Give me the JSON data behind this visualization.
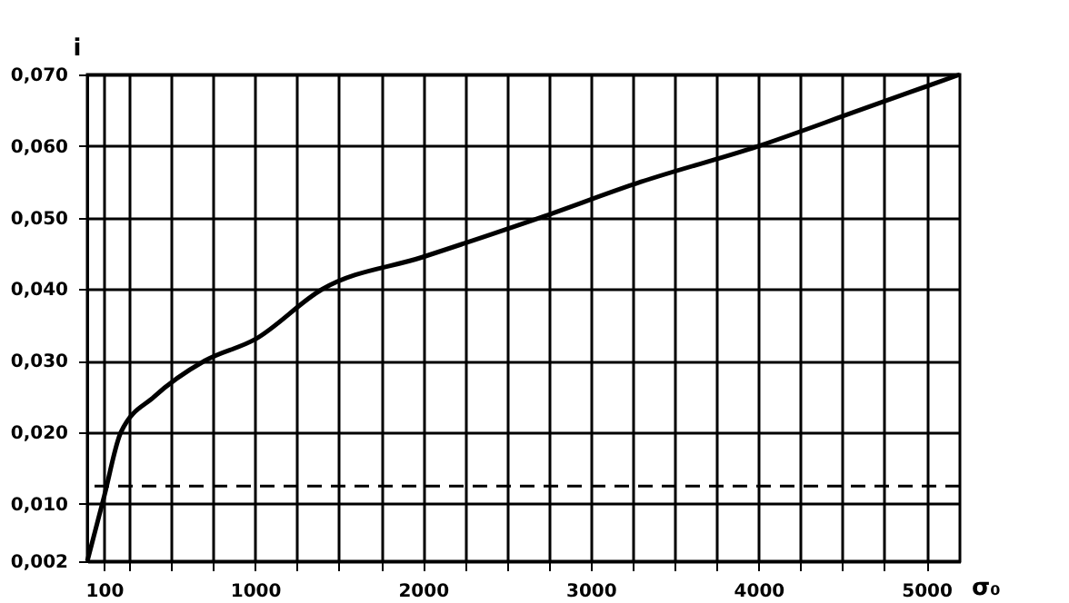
{
  "chart_data": {
    "type": "line",
    "xlabel": "σ₀",
    "ylabel": "i",
    "x": [
      0,
      100,
      200,
      400,
      700,
      1000,
      1400,
      2000,
      2700,
      3300,
      4000,
      4600,
      5200
    ],
    "series": [
      {
        "color": "#000000",
        "values": [
          0.002,
          0.011,
          0.02,
          0.025,
          0.03,
          0.033,
          0.04,
          0.0445,
          0.05,
          0.055,
          0.06,
          0.065,
          0.07
        ]
      }
    ],
    "xlim": [
      0,
      5200
    ],
    "xticks": [
      100,
      {
        "value": 250,
        "label": null
      },
      {
        "value": 500,
        "label": null
      },
      {
        "value": 750,
        "label": null
      },
      1000,
      {
        "value": 1250,
        "label": null
      },
      {
        "value": 1500,
        "label": null
      },
      {
        "value": 1750,
        "label": null
      },
      2000,
      {
        "value": 2250,
        "label": null
      },
      {
        "value": 2500,
        "label": null
      },
      {
        "value": 2750,
        "label": null
      },
      3000,
      {
        "value": 3250,
        "label": null
      },
      {
        "value": 3500,
        "label": null
      },
      {
        "value": 3750,
        "label": null
      },
      4000,
      {
        "value": 4250,
        "label": null
      },
      {
        "value": 4500,
        "label": null
      },
      {
        "value": 4750,
        "label": null
      },
      5000
    ],
    "ylim": [
      0.002,
      0.07
    ],
    "yticks": [
      {
        "value": 0.002,
        "label": "0,002"
      },
      {
        "value": 0.01,
        "label": "0,010"
      },
      {
        "value": 0.02,
        "label": "0,020"
      },
      {
        "value": 0.03,
        "label": "0,030"
      },
      {
        "value": 0.04,
        "label": "0,040"
      },
      {
        "value": 0.05,
        "label": "0,050"
      },
      {
        "value": 0.06,
        "label": "0,060"
      },
      {
        "value": 0.07,
        "label": "0,070"
      }
    ],
    "ref_lines": [
      {
        "axis": "y",
        "value": 0.0125,
        "line_style": "dashed",
        "color": "#000000"
      }
    ],
    "grid": true,
    "marker": "none",
    "line_style": "solid"
  }
}
